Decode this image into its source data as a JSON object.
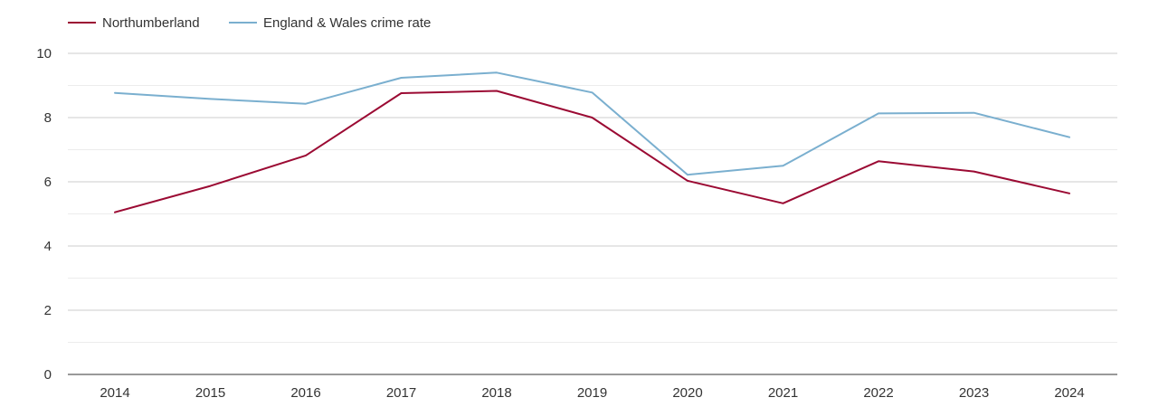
{
  "chart_data": {
    "type": "line",
    "title": "",
    "xlabel": "",
    "ylabel": "",
    "x": [
      "2014",
      "2015",
      "2016",
      "2017",
      "2018",
      "2019",
      "2020",
      "2021",
      "2022",
      "2023",
      "2024"
    ],
    "y_ticks": [
      "0",
      "2",
      "4",
      "6",
      "8",
      "10"
    ],
    "ylim": [
      0,
      10
    ],
    "grid": true,
    "minor_grid": true,
    "legend_position": "top-left",
    "series": [
      {
        "name": "Northumberland",
        "color": "#9b0a33",
        "values": [
          5.05,
          5.87,
          6.82,
          8.76,
          8.83,
          8.0,
          6.03,
          5.33,
          6.64,
          6.32,
          5.64
        ]
      },
      {
        "name": "England & Wales crime rate",
        "color": "#7aafcf",
        "values": [
          8.77,
          8.58,
          8.43,
          9.24,
          9.4,
          8.78,
          6.22,
          6.5,
          8.13,
          8.15,
          7.39
        ]
      }
    ]
  }
}
